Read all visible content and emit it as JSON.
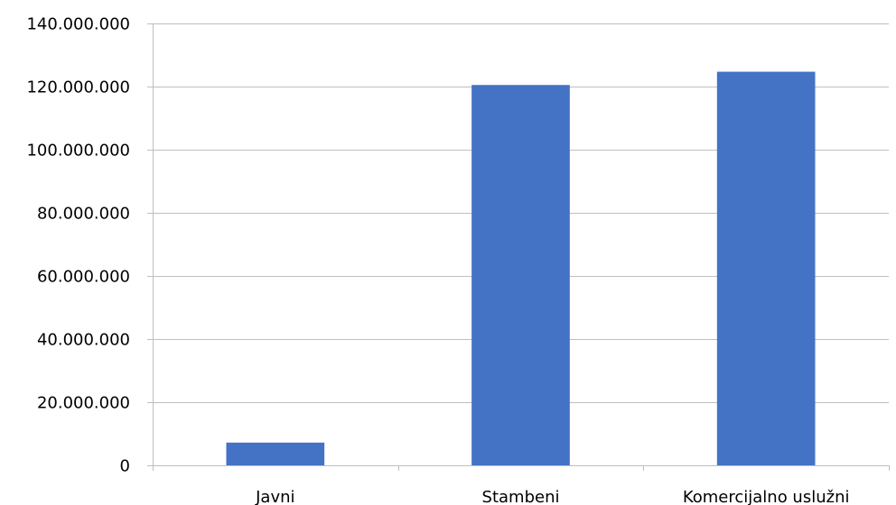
{
  "chart_data": {
    "type": "bar",
    "title": "",
    "xlabel": "",
    "ylabel": "",
    "categories": [
      "Javni",
      "Stambeni",
      "Komercijalno uslužni"
    ],
    "series": [
      {
        "values": [
          7200000,
          120500000,
          124700000
        ]
      }
    ],
    "ylim": [
      0,
      140000000
    ],
    "yticks": [
      0,
      20000000,
      40000000,
      60000000,
      80000000,
      100000000,
      120000000,
      140000000
    ],
    "ytick_labels": [
      "0",
      "20.000.000",
      "40.000.000",
      "60.000.000",
      "80.000.000",
      "100.000.000",
      "120.000.000",
      "140.000.000"
    ],
    "grid": true,
    "legend": "none",
    "colors": {
      "bar": "#4472C4",
      "grid": "#BFBFBF",
      "text": "#000000"
    }
  }
}
